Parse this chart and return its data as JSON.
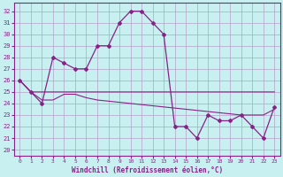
{
  "xlabel": "Windchill (Refroidissement éolien,°C)",
  "bg_color": "#c8f0f0",
  "grid_color": "#aadddd",
  "line_color": "#882288",
  "ylim": [
    19.5,
    32.7
  ],
  "xlim": [
    -0.5,
    23.5
  ],
  "yticks": [
    20,
    21,
    22,
    23,
    24,
    25,
    26,
    27,
    28,
    29,
    30,
    31,
    32
  ],
  "xticks": [
    0,
    1,
    2,
    3,
    4,
    5,
    6,
    7,
    8,
    9,
    10,
    11,
    12,
    13,
    14,
    15,
    16,
    17,
    18,
    19,
    20,
    21,
    22,
    23
  ],
  "series": [
    {
      "x": [
        0,
        1,
        2,
        3,
        4,
        5,
        6,
        7,
        8,
        9,
        10,
        11,
        12,
        13,
        14,
        15,
        16,
        17,
        18,
        19,
        20,
        21,
        22,
        23
      ],
      "y": [
        26,
        25,
        25,
        25,
        25,
        25,
        25,
        25,
        25,
        25,
        25,
        25,
        25,
        25,
        25,
        25,
        25,
        25,
        25,
        25,
        25,
        25,
        25,
        25
      ],
      "marker": false
    },
    {
      "x": [
        0,
        1,
        2,
        3,
        4,
        5,
        6,
        7,
        8,
        9,
        10,
        11,
        12,
        13,
        14,
        15,
        16,
        17,
        18,
        19,
        20,
        21,
        22,
        23
      ],
      "y": [
        26,
        25,
        24.3,
        24.3,
        24.8,
        24.8,
        24.5,
        24.3,
        24.2,
        24.1,
        24.0,
        23.9,
        23.8,
        23.7,
        23.6,
        23.5,
        23.4,
        23.3,
        23.2,
        23.1,
        23.0,
        23.0,
        23.0,
        23.5
      ],
      "marker": false
    },
    {
      "x": [
        0,
        1,
        2,
        3,
        4,
        5,
        6,
        7,
        8,
        9,
        10,
        11,
        12,
        13,
        14,
        15,
        16,
        17,
        18,
        19,
        20,
        21,
        22,
        23
      ],
      "y": [
        26,
        25,
        24,
        28,
        27.5,
        27,
        27,
        29,
        29,
        31,
        32,
        32,
        31,
        30,
        22,
        22,
        21,
        23,
        22.5,
        22.5,
        23,
        22,
        21,
        23.7
      ],
      "marker": true
    }
  ]
}
